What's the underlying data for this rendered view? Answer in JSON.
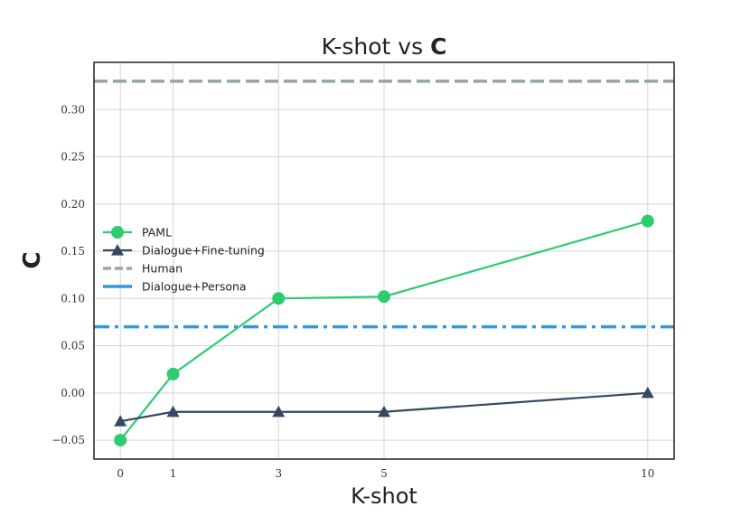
{
  "chart_data": {
    "type": "line",
    "title_prefix": "K-shot vs ",
    "title_bold": "C",
    "xlabel": "K-shot",
    "ylabel": "C",
    "x": [
      0,
      1,
      3,
      5,
      10
    ],
    "x_ticks": [
      "0",
      "1",
      "3",
      "5",
      "10"
    ],
    "xlim": [
      -0.5,
      10.5
    ],
    "ylim": [
      -0.07,
      0.35
    ],
    "y_ticks": [
      "−0.05",
      "0.00",
      "0.05",
      "0.10",
      "0.15",
      "0.20",
      "0.25",
      "0.30"
    ],
    "y_tick_values": [
      -0.05,
      0,
      0.05,
      0.1,
      0.15,
      0.2,
      0.25,
      0.3
    ],
    "grid": true,
    "legend_position": "center-left",
    "series": [
      {
        "name": "PAML",
        "style": "line",
        "marker": "circle",
        "color": "#2ecc71",
        "values": [
          -0.05,
          0.02,
          0.1,
          0.102,
          0.182
        ]
      },
      {
        "name": "Dialogue+Fine-tuning",
        "style": "line",
        "marker": "triangle",
        "color": "#34495e",
        "values": [
          -0.03,
          -0.02,
          -0.02,
          -0.02,
          0.0
        ]
      },
      {
        "name": "Human",
        "style": "hline-dashed",
        "color": "#95a5a6",
        "value": 0.33
      },
      {
        "name": "Dialogue+Persona",
        "style": "hline-dashdot",
        "color": "#3498db",
        "value": 0.07
      }
    ]
  }
}
